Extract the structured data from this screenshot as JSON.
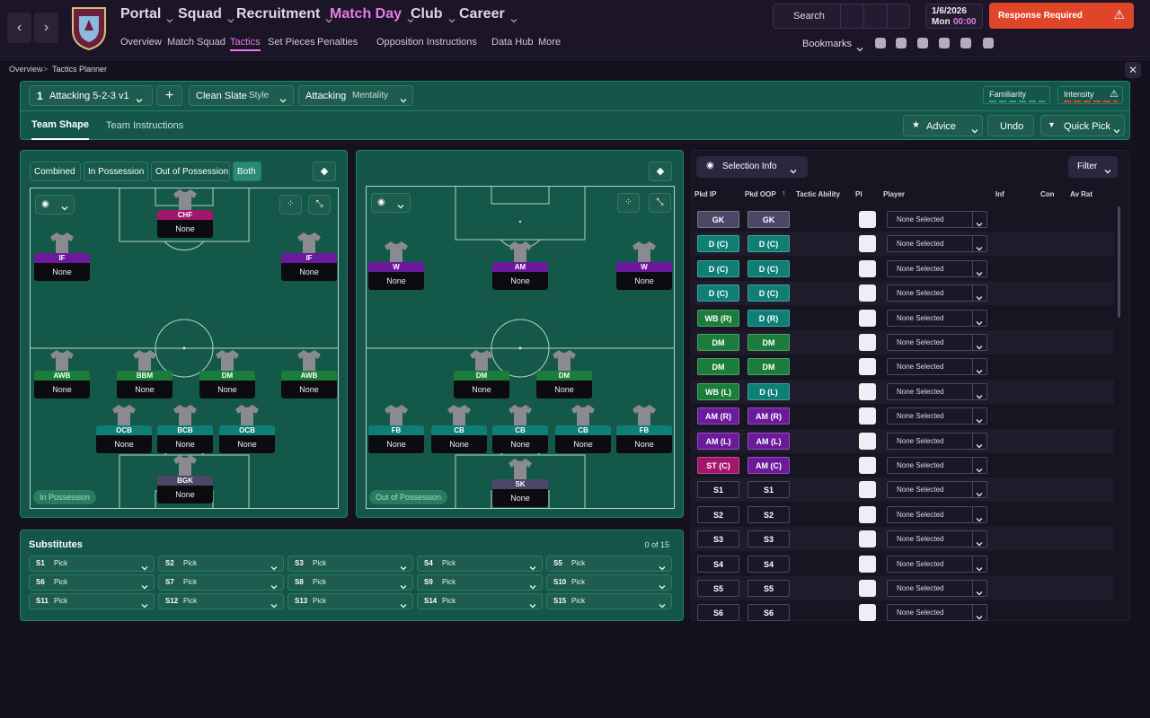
{
  "nav": {
    "menu": [
      "Portal",
      "Squad",
      "Recruitment",
      "Match Day",
      "Club",
      "Career"
    ],
    "submenu": [
      "Overview",
      "Match Squad",
      "Tactics",
      "Set Pieces",
      "Penalties",
      "Opposition Instructions",
      "Data Hub",
      "More"
    ],
    "search": "Search",
    "date": "1/6/2026",
    "day": "Mon",
    "time": "00:00",
    "alert": "Response Required",
    "bookmarks": "Bookmarks"
  },
  "breadcrumb": [
    "Overview",
    "Tactics Planner"
  ],
  "toolbar": {
    "tactic_number": "1",
    "tactic": "Attacking 5-2-3 v1",
    "style_value": "Clean Slate",
    "style_label": "Style",
    "mentality_value": "Attacking",
    "mentality_label": "Mentality",
    "familiarity": "Familiarity",
    "intensity": "Intensity"
  },
  "tabs": [
    "Team Shape",
    "Team Instructions"
  ],
  "actions": [
    "Advice",
    "Undo",
    "Quick Pick"
  ],
  "pitch_filters": [
    "Combined",
    "In Possession",
    "Out of Possession",
    "Both"
  ],
  "in_possession": {
    "label": "In Possession",
    "players": [
      {
        "role": "CHF",
        "name": "None",
        "color": "#a3176b"
      },
      {
        "role": "IF",
        "name": "None",
        "color": "#6a1a9a"
      },
      {
        "role": "IF",
        "name": "None",
        "color": "#6a1a9a"
      },
      {
        "role": "AWB",
        "name": "None",
        "color": "#1a7d3a"
      },
      {
        "role": "BBM",
        "name": "None",
        "color": "#1a7d3a"
      },
      {
        "role": "DM",
        "name": "None",
        "color": "#1a7d3a"
      },
      {
        "role": "AWB",
        "name": "None",
        "color": "#1a7d3a"
      },
      {
        "role": "OCB",
        "name": "None",
        "color": "#0e7f76"
      },
      {
        "role": "BCB",
        "name": "None",
        "color": "#0e7f76"
      },
      {
        "role": "OCB",
        "name": "None",
        "color": "#0e7f76"
      },
      {
        "role": "BGK",
        "name": "None",
        "color": "#4a4866"
      }
    ]
  },
  "out_of_possession": {
    "label": "Out of Possession",
    "players": [
      {
        "role": "W",
        "name": "None",
        "color": "#6a1a9a"
      },
      {
        "role": "AM",
        "name": "None",
        "color": "#6a1a9a"
      },
      {
        "role": "W",
        "name": "None",
        "color": "#6a1a9a"
      },
      {
        "role": "DM",
        "name": "None",
        "color": "#1a7d3a"
      },
      {
        "role": "DM",
        "name": "None",
        "color": "#1a7d3a"
      },
      {
        "role": "FB",
        "name": "None",
        "color": "#0e7f76"
      },
      {
        "role": "CB",
        "name": "None",
        "color": "#0e7f76"
      },
      {
        "role": "CB",
        "name": "None",
        "color": "#0e7f76"
      },
      {
        "role": "CB",
        "name": "None",
        "color": "#0e7f76"
      },
      {
        "role": "FB",
        "name": "None",
        "color": "#0e7f76"
      },
      {
        "role": "SK",
        "name": "None",
        "color": "#4a4866"
      }
    ]
  },
  "substitutes": {
    "title": "Substitutes",
    "count": "0 of 15",
    "slots": [
      {
        "label": "S1",
        "value": "Pick"
      },
      {
        "label": "S2",
        "value": "Pick"
      },
      {
        "label": "S3",
        "value": "Pick"
      },
      {
        "label": "S4",
        "value": "Pick"
      },
      {
        "label": "S5",
        "value": "Pick"
      },
      {
        "label": "S6",
        "value": "Pick"
      },
      {
        "label": "S7",
        "value": "Pick"
      },
      {
        "label": "S8",
        "value": "Pick"
      },
      {
        "label": "S9",
        "value": "Pick"
      },
      {
        "label": "S10",
        "value": "Pick"
      },
      {
        "label": "S11",
        "value": "Pick"
      },
      {
        "label": "S12",
        "value": "Pick"
      },
      {
        "label": "S13",
        "value": "Pick"
      },
      {
        "label": "S14",
        "value": "Pick"
      },
      {
        "label": "S15",
        "value": "Pick"
      }
    ]
  },
  "selection": {
    "button": "Selection Info",
    "filter": "Filter",
    "columns": [
      "Pkd IP",
      "Pkd OOP",
      "Tactic Ability",
      "PI",
      "Player",
      "Inf",
      "Con",
      "Av Rat"
    ],
    "rows": [
      {
        "ip": "GK",
        "oop": "GK",
        "player": "None Selected",
        "ip_color": "#4a4866",
        "oop_color": "#4a4866"
      },
      {
        "ip": "D (C)",
        "oop": "D (C)",
        "player": "None Selected",
        "ip_color": "#0e7f76",
        "oop_color": "#0e7f76"
      },
      {
        "ip": "D (C)",
        "oop": "D (C)",
        "player": "None Selected",
        "ip_color": "#0e7f76",
        "oop_color": "#0e7f76"
      },
      {
        "ip": "D (C)",
        "oop": "D (C)",
        "player": "None Selected",
        "ip_color": "#0e7f76",
        "oop_color": "#0e7f76"
      },
      {
        "ip": "WB (R)",
        "oop": "D (R)",
        "player": "None Selected",
        "ip_color": "#1a7d3a",
        "oop_color": "#0e7f76"
      },
      {
        "ip": "DM",
        "oop": "DM",
        "player": "None Selected",
        "ip_color": "#1a7d3a",
        "oop_color": "#1a7d3a"
      },
      {
        "ip": "DM",
        "oop": "DM",
        "player": "None Selected",
        "ip_color": "#1a7d3a",
        "oop_color": "#1a7d3a"
      },
      {
        "ip": "WB (L)",
        "oop": "D (L)",
        "player": "None Selected",
        "ip_color": "#1a7d3a",
        "oop_color": "#0e7f76"
      },
      {
        "ip": "AM (R)",
        "oop": "AM (R)",
        "player": "None Selected",
        "ip_color": "#6a1a9a",
        "oop_color": "#6a1a9a"
      },
      {
        "ip": "AM (L)",
        "oop": "AM (L)",
        "player": "None Selected",
        "ip_color": "#6a1a9a",
        "oop_color": "#6a1a9a"
      },
      {
        "ip": "ST (C)",
        "oop": "AM (C)",
        "player": "None Selected",
        "ip_color": "#a3176b",
        "oop_color": "#6a1a9a"
      },
      {
        "ip": "S1",
        "oop": "S1",
        "player": "None Selected",
        "ip_color": "#1a1828",
        "oop_color": "#1a1828"
      },
      {
        "ip": "S2",
        "oop": "S2",
        "player": "None Selected",
        "ip_color": "#1a1828",
        "oop_color": "#1a1828"
      },
      {
        "ip": "S3",
        "oop": "S3",
        "player": "None Selected",
        "ip_color": "#1a1828",
        "oop_color": "#1a1828"
      },
      {
        "ip": "S4",
        "oop": "S4",
        "player": "None Selected",
        "ip_color": "#1a1828",
        "oop_color": "#1a1828"
      },
      {
        "ip": "S5",
        "oop": "S5",
        "player": "None Selected",
        "ip_color": "#1a1828",
        "oop_color": "#1a1828"
      },
      {
        "ip": "S6",
        "oop": "S6",
        "player": "None Selected",
        "ip_color": "#1a1828",
        "oop_color": "#1a1828"
      }
    ]
  }
}
